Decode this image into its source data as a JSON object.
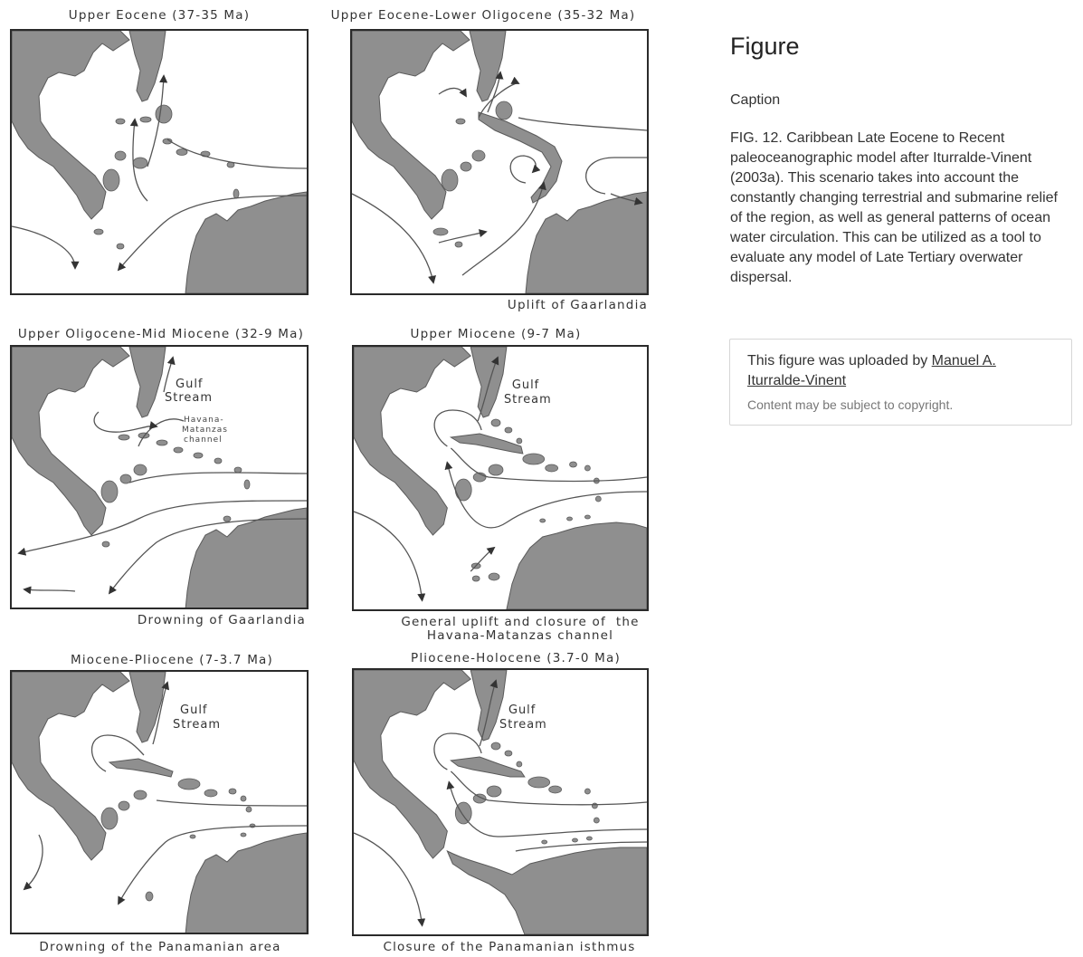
{
  "panels": [
    {
      "title": "Upper Eocene (37-35 Ma)",
      "caption": ""
    },
    {
      "title": "Upper Eocene-Lower Oligocene (35-32 Ma)",
      "caption": "Uplift of  Gaarlandia"
    },
    {
      "title": "Upper Oligocene-Mid Miocene (32-9 Ma)",
      "caption": "Drowning of Gaarlandia"
    },
    {
      "title": "Upper Miocene (9-7 Ma)",
      "caption": "General uplift and closure of  the\nHavana-Matanzas channel"
    },
    {
      "title": "Miocene-Pliocene (7-3.7 Ma)",
      "caption": "Drowning of the Panamanian area"
    },
    {
      "title": "Pliocene-Holocene (3.7-0 Ma)",
      "caption": "Closure of the Panamanian isthmus"
    }
  ],
  "map_labels": {
    "gulf": "Gulf",
    "stream": "Stream",
    "channel_1": "Havana-",
    "channel_2": "Matanzas",
    "channel_3": "channel"
  },
  "sidebar": {
    "title": "Figure",
    "caption_label": "Caption",
    "caption_text": "FIG. 12. Caribbean Late Eocene to Recent paleoceanographic model after Iturralde-Vinent (2003a). This scenario takes into account the constantly changing terrestrial and submarine relief of the region, as well as general patterns of ocean water circulation. This can be utilized as a tool to evaluate any model of Late Tertiary overwater dispersal.",
    "upload_prefix": "This figure was uploaded by ",
    "uploader": "Manuel A. Iturralde-Vinent",
    "copyright_note": "Content may be subject to copyright."
  },
  "colors": {
    "land": "#8f8f8f",
    "border": "#2a2a2a",
    "text": "#333333"
  }
}
